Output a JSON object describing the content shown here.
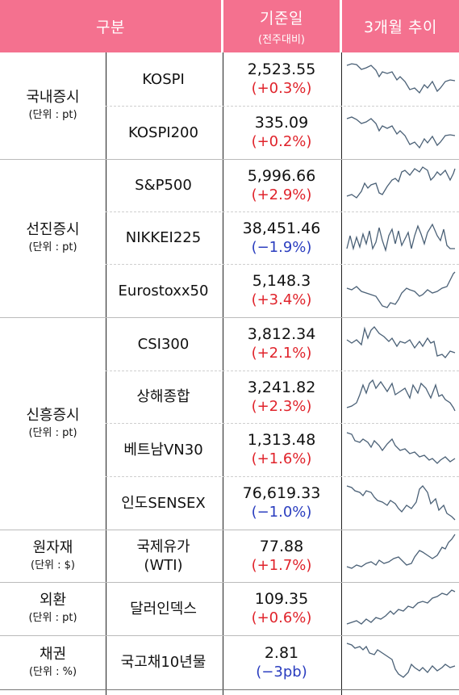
{
  "header": {
    "category": "구분",
    "base_date": "기준일",
    "base_sub": "(전주대비)",
    "trend": "3개월 추이"
  },
  "groups": [
    {
      "title": "국내증시",
      "unit": "(단위 : pt)"
    },
    {
      "title": "선진증시",
      "unit": "(단위 : pt)"
    },
    {
      "title": "신흥증시",
      "unit": "(단위 : pt)"
    },
    {
      "title": "원자재",
      "unit": "(단위 : $)"
    },
    {
      "title": "외환",
      "unit": "(단위 : pt)"
    },
    {
      "title": "채권",
      "unit": "(단위 : %)"
    }
  ],
  "rows": [
    {
      "name": "KOSPI",
      "value": "2,523.55",
      "change": "(+0.3%)",
      "direction": "up",
      "trend_icon": "sparkline"
    },
    {
      "name": "KOSPI200",
      "value": "335.09",
      "change": "(+0.2%)",
      "direction": "up",
      "trend_icon": "sparkline"
    },
    {
      "name": "S&P500",
      "value": "5,996.66",
      "change": "(+2.9%)",
      "direction": "up",
      "trend_icon": "sparkline"
    },
    {
      "name": "NIKKEI225",
      "value": "38,451.46",
      "change": "(−1.9%)",
      "direction": "down",
      "trend_icon": "sparkline"
    },
    {
      "name": "Eurostoxx50",
      "value": "5,148.3",
      "change": "(+3.4%)",
      "direction": "up",
      "trend_icon": "sparkline"
    },
    {
      "name": "CSI300",
      "value": "3,812.34",
      "change": "(+2.1%)",
      "direction": "up",
      "trend_icon": "sparkline"
    },
    {
      "name": "상해종합",
      "value": "3,241.82",
      "change": "(+2.3%)",
      "direction": "up",
      "trend_icon": "sparkline"
    },
    {
      "name": "베트남VN30",
      "value": "1,313.48",
      "change": "(+1.6%)",
      "direction": "up",
      "trend_icon": "sparkline"
    },
    {
      "name": "인도SENSEX",
      "value": "76,619.33",
      "change": "(−1.0%)",
      "direction": "down",
      "trend_icon": "sparkline"
    },
    {
      "name": "국제유가",
      "name2": "(WTI)",
      "value": "77.88",
      "change": "(+1.7%)",
      "direction": "up",
      "trend_icon": "sparkline"
    },
    {
      "name": "달러인덱스",
      "value": "109.35",
      "change": "(+0.6%)",
      "direction": "up",
      "trend_icon": "sparkline"
    },
    {
      "name": "국고채10년물",
      "value": "2.81",
      "change": "(−3pb)",
      "direction": "down",
      "trend_icon": "sparkline"
    }
  ],
  "colors": {
    "header_bg": "#f4718f",
    "up": "#e0232b",
    "down": "#2a3dbf",
    "sparkline": "#4a6076"
  }
}
